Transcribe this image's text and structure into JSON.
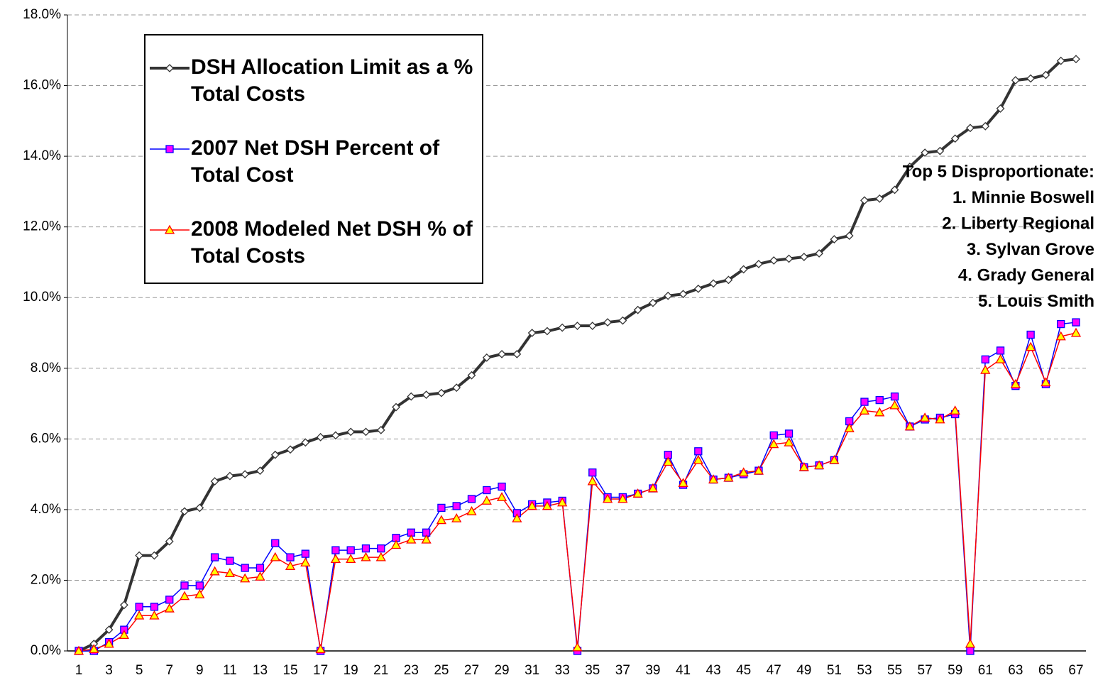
{
  "chart_data": {
    "type": "line",
    "categories": [
      1,
      null,
      3,
      null,
      5,
      null,
      7,
      null,
      9,
      null,
      11,
      null,
      13,
      null,
      15,
      null,
      17,
      null,
      19,
      null,
      21,
      null,
      23,
      null,
      25,
      null,
      27,
      null,
      29,
      null,
      31,
      null,
      33,
      null,
      35,
      null,
      37,
      null,
      39,
      null,
      41,
      null,
      43,
      null,
      45,
      null,
      47,
      null,
      49,
      null,
      51,
      null,
      53,
      null,
      55,
      null,
      57,
      null,
      59,
      null,
      61,
      null,
      63,
      null,
      65,
      null,
      67
    ],
    "series": [
      {
        "name": "DSH Allocation Limit as a % Total Costs",
        "color": "#333333",
        "marker": "diamond",
        "values": [
          0.0,
          0.2,
          0.6,
          1.3,
          2.7,
          2.7,
          3.1,
          3.95,
          4.05,
          4.8,
          4.95,
          5.0,
          5.1,
          5.55,
          5.7,
          5.9,
          6.05,
          6.1,
          6.2,
          6.2,
          6.25,
          6.9,
          7.2,
          7.25,
          7.3,
          7.45,
          7.8,
          8.3,
          8.4,
          8.4,
          9.0,
          9.05,
          9.15,
          9.2,
          9.2,
          9.3,
          9.35,
          9.65,
          9.85,
          10.05,
          10.1,
          10.25,
          10.4,
          10.5,
          10.8,
          10.95,
          11.05,
          11.1,
          11.15,
          11.25,
          11.65,
          11.75,
          12.75,
          12.8,
          13.05,
          13.7,
          14.1,
          14.15,
          14.5,
          14.8,
          14.85,
          15.35,
          16.15,
          16.2,
          16.3,
          16.7,
          16.75
        ]
      },
      {
        "name": "2007 Net DSH Percent of Total Cost",
        "color": "#0000ff",
        "marker": "square",
        "values": [
          0.0,
          0.0,
          0.25,
          0.6,
          1.25,
          1.25,
          1.45,
          1.85,
          1.85,
          2.65,
          2.55,
          2.35,
          2.35,
          3.05,
          2.65,
          2.75,
          0.0,
          2.85,
          2.85,
          2.9,
          2.9,
          3.2,
          3.35,
          3.35,
          4.05,
          4.1,
          4.3,
          4.55,
          4.65,
          3.9,
          4.15,
          4.2,
          4.25,
          0.0,
          5.05,
          4.35,
          4.35,
          4.45,
          4.6,
          5.55,
          4.7,
          5.65,
          4.85,
          4.9,
          5.0,
          5.1,
          6.1,
          6.15,
          5.2,
          5.25,
          5.4,
          6.5,
          7.05,
          7.1,
          7.2,
          6.35,
          6.55,
          6.6,
          6.7,
          0.0,
          8.25,
          8.5,
          7.5,
          8.95,
          7.55,
          9.25,
          9.3
        ]
      },
      {
        "name": "2008 Modeled Net DSH % of Total Costs",
        "color": "#ff0000",
        "marker": "triangle",
        "values": [
          0.0,
          0.05,
          0.2,
          0.45,
          1.0,
          1.0,
          1.2,
          1.55,
          1.6,
          2.25,
          2.2,
          2.05,
          2.1,
          2.65,
          2.4,
          2.5,
          0.05,
          2.6,
          2.6,
          2.65,
          2.65,
          3.0,
          3.15,
          3.15,
          3.7,
          3.75,
          3.95,
          4.25,
          4.35,
          3.75,
          4.1,
          4.1,
          4.2,
          0.1,
          4.8,
          4.3,
          4.3,
          4.45,
          4.6,
          5.35,
          4.75,
          5.4,
          4.85,
          4.9,
          5.05,
          5.1,
          5.85,
          5.9,
          5.2,
          5.25,
          5.4,
          6.3,
          6.8,
          6.75,
          6.95,
          6.35,
          6.6,
          6.55,
          6.8,
          0.2,
          7.95,
          8.25,
          7.55,
          8.6,
          7.6,
          8.9,
          9.0
        ]
      }
    ],
    "ylim": [
      0,
      18
    ],
    "yticks": [
      {
        "value": 0,
        "label": "0.0%"
      },
      {
        "value": 2,
        "label": "2.0%"
      },
      {
        "value": 4,
        "label": "4.0%"
      },
      {
        "value": 6,
        "label": "6.0%"
      },
      {
        "value": 8,
        "label": "8.0%"
      },
      {
        "value": 10,
        "label": "10.0%"
      },
      {
        "value": 12,
        "label": "12.0%"
      },
      {
        "value": 14,
        "label": "14.0%"
      },
      {
        "value": 16,
        "label": "16.0%"
      },
      {
        "value": 18,
        "label": "18.0%"
      }
    ],
    "grid": true,
    "legend": "upper left",
    "annotations": [
      "Top 5 Disproportionate:",
      "1. Minnie Boswell",
      "2. Liberty Regional",
      "3. Sylvan Grove",
      "4. Grady General",
      "5. Louis Smith"
    ]
  }
}
